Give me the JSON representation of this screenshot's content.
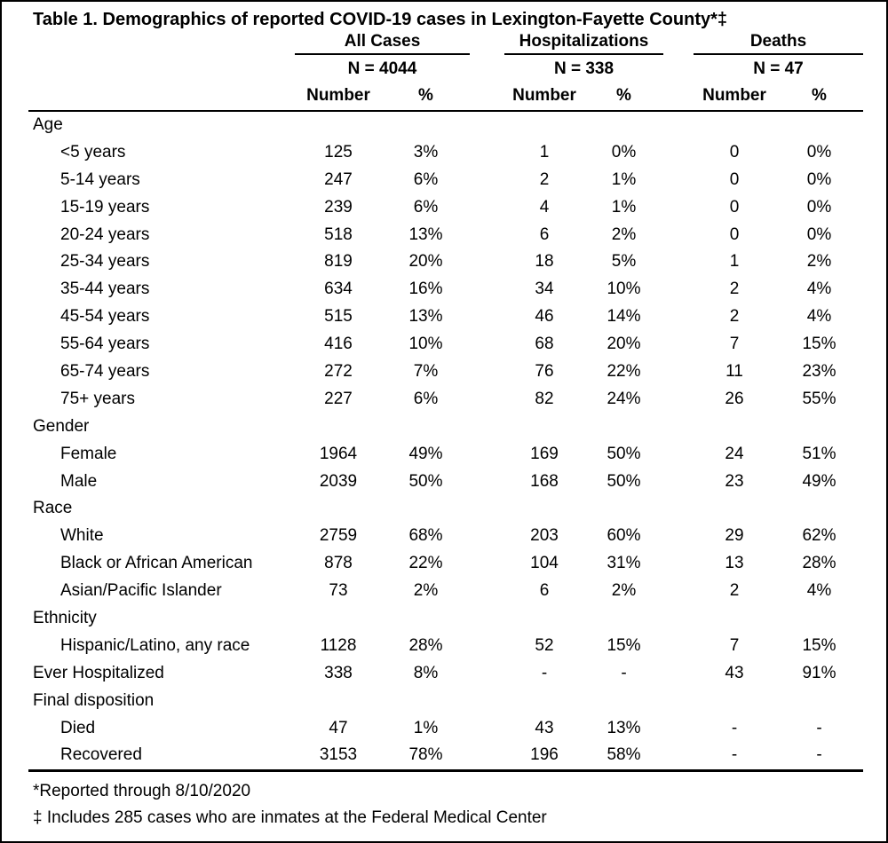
{
  "page": {
    "title": "Table 1. Demographics of reported COVID-19 cases in Lexington-Fayette County*‡"
  },
  "table": {
    "groups": [
      {
        "label": "All Cases",
        "n": "N = 4044"
      },
      {
        "label": "Hospitalizations",
        "n": "N = 338"
      },
      {
        "label": "Deaths",
        "n": "N = 47"
      }
    ],
    "columns": {
      "number": "Number",
      "percent": "%"
    },
    "rows": [
      {
        "label": "Age",
        "section": true
      },
      {
        "label": "<5 years",
        "cells": [
          "125",
          "3%",
          "1",
          "0%",
          "0",
          "0%"
        ]
      },
      {
        "label": "5-14 years",
        "cells": [
          "247",
          "6%",
          "2",
          "1%",
          "0",
          "0%"
        ]
      },
      {
        "label": "15-19 years",
        "cells": [
          "239",
          "6%",
          "4",
          "1%",
          "0",
          "0%"
        ]
      },
      {
        "label": "20-24 years",
        "cells": [
          "518",
          "13%",
          "6",
          "2%",
          "0",
          "0%"
        ]
      },
      {
        "label": "25-34 years",
        "cells": [
          "819",
          "20%",
          "18",
          "5%",
          "1",
          "2%"
        ]
      },
      {
        "label": "35-44 years",
        "cells": [
          "634",
          "16%",
          "34",
          "10%",
          "2",
          "4%"
        ]
      },
      {
        "label": "45-54 years",
        "cells": [
          "515",
          "13%",
          "46",
          "14%",
          "2",
          "4%"
        ]
      },
      {
        "label": "55-64 years",
        "cells": [
          "416",
          "10%",
          "68",
          "20%",
          "7",
          "15%"
        ]
      },
      {
        "label": "65-74 years",
        "cells": [
          "272",
          "7%",
          "76",
          "22%",
          "11",
          "23%"
        ]
      },
      {
        "label": "75+ years",
        "cells": [
          "227",
          "6%",
          "82",
          "24%",
          "26",
          "55%"
        ]
      },
      {
        "label": "Gender",
        "section": true
      },
      {
        "label": "Female",
        "cells": [
          "1964",
          "49%",
          "169",
          "50%",
          "24",
          "51%"
        ]
      },
      {
        "label": "Male",
        "cells": [
          "2039",
          "50%",
          "168",
          "50%",
          "23",
          "49%"
        ]
      },
      {
        "label": "Race",
        "section": true
      },
      {
        "label": "White",
        "cells": [
          "2759",
          "68%",
          "203",
          "60%",
          "29",
          "62%"
        ]
      },
      {
        "label": "Black or African American",
        "cells": [
          "878",
          "22%",
          "104",
          "31%",
          "13",
          "28%"
        ]
      },
      {
        "label": "Asian/Pacific Islander",
        "cells": [
          "73",
          "2%",
          "6",
          "2%",
          "2",
          "4%"
        ]
      },
      {
        "label": "Ethnicity",
        "section": true
      },
      {
        "label": "Hispanic/Latino, any race",
        "cells": [
          "1128",
          "28%",
          "52",
          "15%",
          "7",
          "15%"
        ]
      },
      {
        "label": "Ever Hospitalized",
        "flush": true,
        "cells": [
          "338",
          "8%",
          "-",
          "-",
          "43",
          "91%"
        ]
      },
      {
        "label": "Final disposition",
        "section": true
      },
      {
        "label": "Died",
        "cells": [
          "47",
          "1%",
          "43",
          "13%",
          "-",
          "-"
        ]
      },
      {
        "label": "Recovered",
        "cells": [
          "3153",
          "78%",
          "196",
          "58%",
          "-",
          "-"
        ]
      }
    ],
    "footnotes": [
      "*Reported through 8/10/2020",
      "‡ Includes 285 cases who are inmates at the Federal Medical Center"
    ]
  }
}
